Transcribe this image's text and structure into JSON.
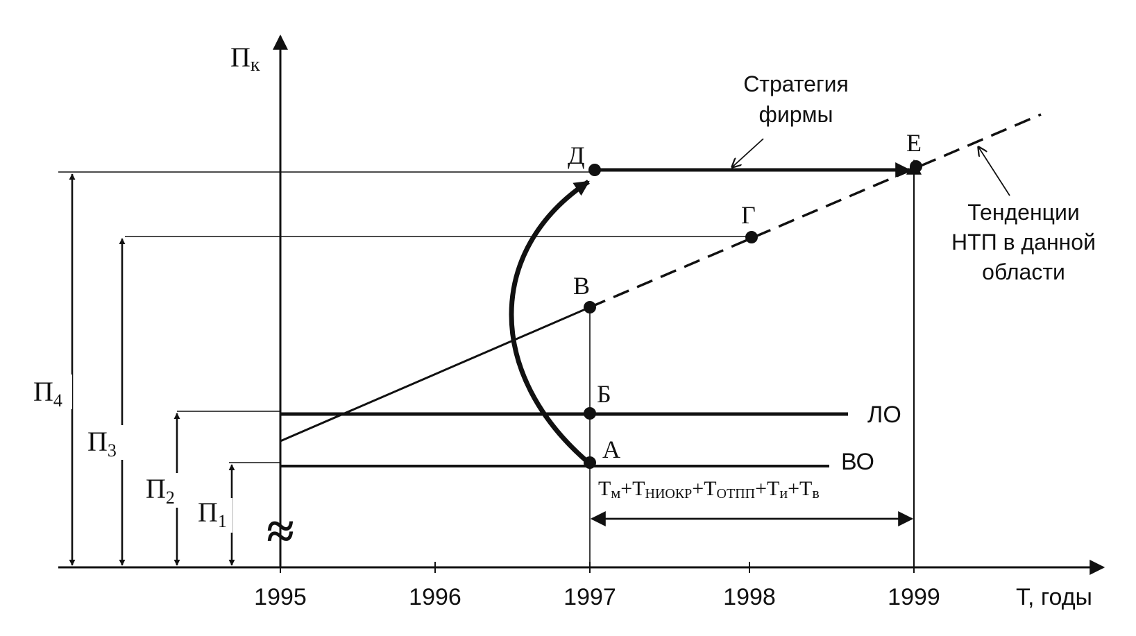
{
  "axes": {
    "y_label": "П",
    "y_label_sub": "к",
    "x_label": "Т, годы",
    "break_mark": "≈"
  },
  "x_ticks": [
    "1995",
    "1996",
    "1997",
    "1998",
    "1999"
  ],
  "levels": [
    {
      "base": "П",
      "sub": "1"
    },
    {
      "base": "П",
      "sub": "2"
    },
    {
      "base": "П",
      "sub": "3"
    },
    {
      "base": "П",
      "sub": "4"
    }
  ],
  "points": {
    "a": "А",
    "b": "Б",
    "v": "В",
    "g": "Г",
    "d": "Д",
    "e": "Е"
  },
  "lines": {
    "lo": "ЛО",
    "vo": "ВО"
  },
  "annotations": {
    "strategy_line1": "Стратегия",
    "strategy_line2": "фирмы",
    "trend_line1": "Тенденции",
    "trend_line2": "НТП в данной",
    "trend_line3": "области"
  },
  "interval_formula": [
    {
      "base": "Т",
      "sub": "м"
    },
    {
      "op": "+"
    },
    {
      "base": "Т",
      "sub": "НИОКР"
    },
    {
      "op": "+"
    },
    {
      "base": "Т",
      "sub": "ОТПП"
    },
    {
      "op": "+"
    },
    {
      "base": "Т",
      "sub": "и"
    },
    {
      "op": "+"
    },
    {
      "base": "Т",
      "sub": "в"
    }
  ]
}
